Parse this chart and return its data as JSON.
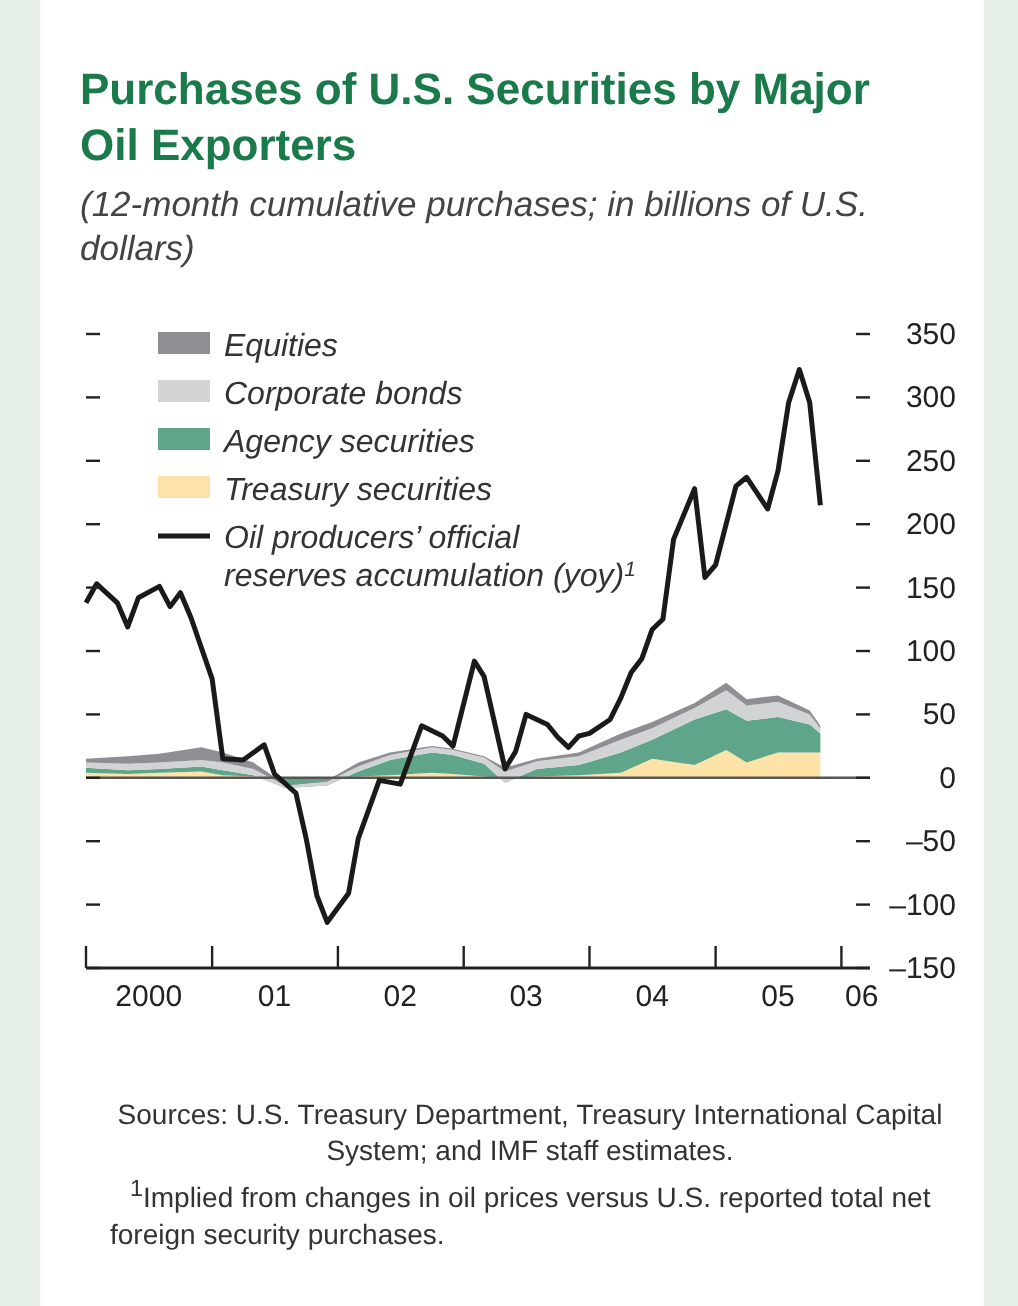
{
  "chart_data": {
    "type": "area",
    "title": "Purchases of U.S. Securities by Major Oil Exporters",
    "subtitle": "(12-month cumulative purchases; in billions of U.S. dollars)",
    "x": [
      "2000-01",
      "2000-05",
      "2000-08",
      "2000-12",
      "2001-02",
      "2001-05",
      "2001-08",
      "2001-12",
      "2002-03",
      "2002-06",
      "2002-10",
      "2002-12",
      "2003-03",
      "2003-05",
      "2003-08",
      "2003-12",
      "2004-04",
      "2004-07",
      "2004-11",
      "2005-02",
      "2005-04",
      "2005-07",
      "2005-10",
      "2005-11"
    ],
    "stacked": true,
    "series": [
      {
        "name": "Treasury securities",
        "color": "#fde3a7",
        "values": [
          4,
          3,
          4,
          5,
          2,
          1,
          0,
          0,
          1,
          2,
          4,
          3,
          1,
          0,
          1,
          2,
          4,
          15,
          10,
          22,
          12,
          20,
          20,
          20
        ]
      },
      {
        "name": "Agency securities",
        "color": "#5ea58a",
        "values": [
          4,
          3,
          3,
          4,
          4,
          1,
          -8,
          -6,
          4,
          12,
          16,
          15,
          10,
          -4,
          6,
          8,
          16,
          15,
          36,
          32,
          33,
          28,
          22,
          15
        ]
      },
      {
        "name": "Corporate bonds",
        "color": "#d2d3d5",
        "values": [
          4,
          5,
          5,
          5,
          6,
          5,
          2,
          3,
          4,
          4,
          4,
          4,
          5,
          9,
          6,
          7,
          10,
          9,
          9,
          15,
          12,
          12,
          8,
          4
        ]
      },
      {
        "name": "Equities",
        "color": "#8e8e93",
        "values": [
          3,
          6,
          7,
          10,
          8,
          5,
          1,
          1,
          3,
          2,
          1,
          1,
          1,
          3,
          2,
          3,
          5,
          5,
          4,
          6,
          5,
          5,
          3,
          2
        ]
      },
      {
        "name": "Oil producers’ official reserves accumulation (yoy)$^{1}$",
        "type": "line",
        "color": "#1a1a1a",
        "x": [
          "2000-01",
          "2000-02",
          "2000-04",
          "2000-05",
          "2000-06",
          "2000-08",
          "2000-09",
          "2000-10",
          "2000-11",
          "2001-01",
          "2001-02",
          "2001-04",
          "2001-06",
          "2001-07",
          "2001-09",
          "2001-10",
          "2001-11",
          "2001-12",
          "2002-02",
          "2002-03",
          "2002-05",
          "2002-07",
          "2002-09",
          "2002-11",
          "2002-12",
          "2003-02",
          "2003-03",
          "2003-05",
          "2003-06",
          "2003-07",
          "2003-09",
          "2003-10",
          "2003-11",
          "2003-12",
          "2004-01",
          "2004-03",
          "2004-04",
          "2004-05",
          "2004-06",
          "2004-07",
          "2004-08",
          "2004-09",
          "2004-11",
          "2004-12",
          "2005-01",
          "2005-03",
          "2005-04",
          "2005-06",
          "2005-07",
          "2005-08",
          "2005-09",
          "2005-10",
          "2005-11"
        ],
        "values": [
          138,
          153,
          138,
          119,
          142,
          151,
          135,
          146,
          126,
          78,
          15,
          14,
          26,
          3,
          -12,
          -48,
          -93,
          -114,
          -91,
          -48,
          -2,
          -5,
          41,
          33,
          25,
          92,
          80,
          7,
          21,
          50,
          42,
          32,
          24,
          33,
          35,
          46,
          63,
          83,
          94,
          117,
          125,
          188,
          228,
          158,
          168,
          230,
          237,
          212,
          242,
          296,
          322,
          296,
          215
        ]
      }
    ],
    "xlim": [
      "2000-01",
      "2006-03-25"
    ],
    "xticks": [
      {
        "value": "2000",
        "label": null
      },
      {
        "value": "2001",
        "label": null
      },
      {
        "value": "2002",
        "label": null
      },
      {
        "value": "2003",
        "label": null
      },
      {
        "value": "2004",
        "label": null
      },
      {
        "value": "2005",
        "label": null
      },
      {
        "value": "2006",
        "label": null
      },
      {
        "value": "2000-07",
        "label": "2000"
      },
      {
        "value": "2001-07",
        "label": "01"
      },
      {
        "value": "2002-07",
        "label": "02"
      },
      {
        "value": "2003-07",
        "label": "03"
      },
      {
        "value": "2004-07",
        "label": "04"
      },
      {
        "value": "2005-07",
        "label": "05"
      },
      {
        "value": "2006-03",
        "label": "06"
      }
    ],
    "ylim": [
      -150,
      350
    ],
    "yticks": [
      350,
      300,
      250,
      200,
      150,
      100,
      50,
      0,
      {
        "value": -50,
        "label": "–50"
      },
      {
        "value": -100,
        "label": "–100"
      },
      {
        "value": -150,
        "label": "–150"
      }
    ],
    "ref_lines": [
      {
        "axis": "y",
        "value": 0,
        "color": "#555555"
      }
    ],
    "legend": "top left",
    "annotations": [
      "Sources: U.S. Treasury Department, Treasury International Capital System; and IMF staff estimates.",
      "$^{1}$Implied from changes in oil prices versus U.S. reported total net foreign security purchases."
    ]
  }
}
